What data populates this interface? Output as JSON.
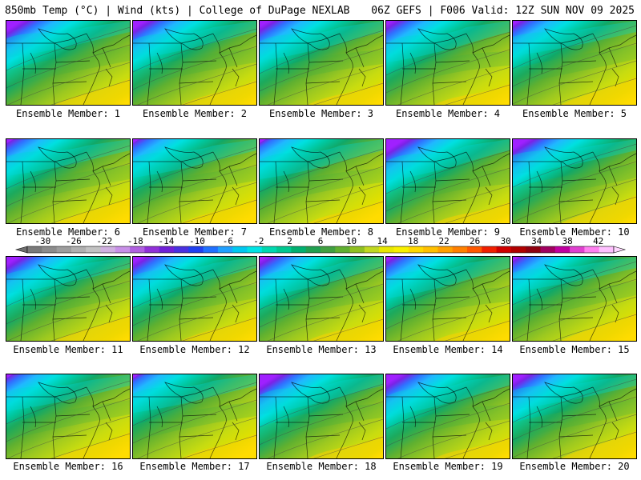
{
  "header": {
    "left": "850mb Temp (°C) | Wind (kts) | College of DuPage NEXLAB",
    "right": "06Z GEFS | F006 Valid: 12Z SUN NOV 09 2025"
  },
  "panels": [
    {
      "member": 1,
      "label": "Ensemble Member: 1"
    },
    {
      "member": 2,
      "label": "Ensemble Member: 2"
    },
    {
      "member": 3,
      "label": "Ensemble Member: 3"
    },
    {
      "member": 4,
      "label": "Ensemble Member: 4"
    },
    {
      "member": 5,
      "label": "Ensemble Member: 5"
    },
    {
      "member": 6,
      "label": "Ensemble Member: 6"
    },
    {
      "member": 7,
      "label": "Ensemble Member: 7"
    },
    {
      "member": 8,
      "label": "Ensemble Member: 8"
    },
    {
      "member": 9,
      "label": "Ensemble Member: 9"
    },
    {
      "member": 10,
      "label": "Ensemble Member: 10"
    },
    {
      "member": 11,
      "label": "Ensemble Member: 11"
    },
    {
      "member": 12,
      "label": "Ensemble Member: 12"
    },
    {
      "member": 13,
      "label": "Ensemble Member: 13"
    },
    {
      "member": 14,
      "label": "Ensemble Member: 14"
    },
    {
      "member": 15,
      "label": "Ensemble Member: 15"
    },
    {
      "member": 16,
      "label": "Ensemble Member: 16"
    },
    {
      "member": 17,
      "label": "Ensemble Member: 17"
    },
    {
      "member": 18,
      "label": "Ensemble Member: 18"
    },
    {
      "member": 19,
      "label": "Ensemble Member: 19"
    },
    {
      "member": 20,
      "label": "Ensemble Member: 20"
    }
  ],
  "colorbar": {
    "ticks": [
      "-30",
      "-26",
      "-22",
      "-18",
      "-14",
      "-10",
      "-6",
      "-2",
      "2",
      "6",
      "10",
      "14",
      "18",
      "22",
      "26",
      "30",
      "34",
      "38",
      "42"
    ],
    "colors": [
      "#7a7a7a",
      "#8c8c8c",
      "#9d9d9d",
      "#b0b0b0",
      "#c2c2c2",
      "#d0b0e0",
      "#c890e8",
      "#b060e0",
      "#9030d8",
      "#7020d8",
      "#4a30e0",
      "#2040f0",
      "#2070ff",
      "#20a0ff",
      "#00c8f0",
      "#00e4e4",
      "#00d8b0",
      "#00c890",
      "#00b070",
      "#20a050",
      "#40a040",
      "#60b030",
      "#90c020",
      "#c0d820",
      "#e8e800",
      "#f8f000",
      "#ffd800",
      "#ffc000",
      "#ffa000",
      "#ff8000",
      "#ff5800",
      "#f02000",
      "#d00000",
      "#b00000",
      "#900010",
      "#a00060",
      "#c000a0",
      "#e040d0",
      "#ff80f0",
      "#ffc0ff"
    ]
  }
}
